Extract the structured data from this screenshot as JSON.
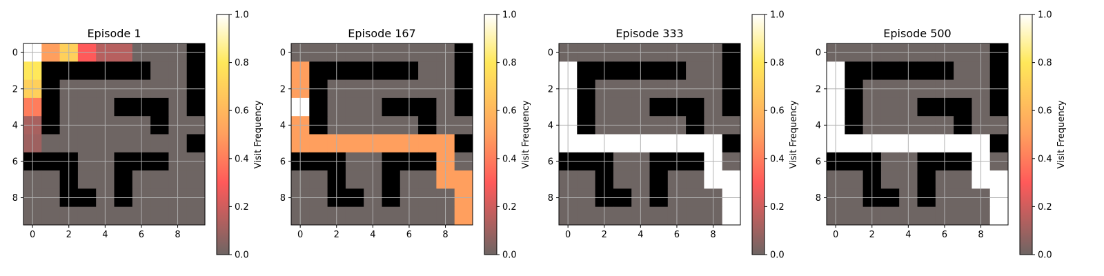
{
  "colors": {
    "wall": "#000000",
    "floor": "#6e6563",
    "grid": "#b0b0b0",
    "colormap": [
      "#6e6563",
      "#ff5a5a",
      "#ff9f5e",
      "#ffe85a",
      "#ffffff"
    ]
  },
  "chart_data": [
    {
      "type": "heatmap",
      "title": "Episode 1",
      "xticks": [
        "0",
        "2",
        "4",
        "6",
        "8"
      ],
      "yticks": [
        "0",
        "2",
        "4",
        "6",
        "8"
      ],
      "walls": [
        [
          0,
          9
        ],
        [
          1,
          1
        ],
        [
          1,
          2
        ],
        [
          1,
          3
        ],
        [
          1,
          4
        ],
        [
          1,
          5
        ],
        [
          1,
          6
        ],
        [
          1,
          9
        ],
        [
          2,
          1
        ],
        [
          2,
          9
        ],
        [
          3,
          1
        ],
        [
          3,
          5
        ],
        [
          3,
          6
        ],
        [
          3,
          7
        ],
        [
          3,
          9
        ],
        [
          4,
          1
        ],
        [
          4,
          7
        ],
        [
          5,
          9
        ],
        [
          6,
          0
        ],
        [
          6,
          1
        ],
        [
          6,
          2
        ],
        [
          6,
          5
        ],
        [
          6,
          6
        ],
        [
          6,
          7
        ],
        [
          7,
          2
        ],
        [
          7,
          5
        ],
        [
          8,
          2
        ],
        [
          8,
          3
        ],
        [
          8,
          5
        ]
      ],
      "visits": [
        [
          0,
          0,
          1.0
        ],
        [
          0,
          1,
          0.5
        ],
        [
          0,
          2,
          0.7
        ],
        [
          0,
          3,
          0.3
        ],
        [
          0,
          4,
          0.15
        ],
        [
          0,
          5,
          0.15
        ],
        [
          1,
          0,
          0.8
        ],
        [
          2,
          0,
          0.7
        ],
        [
          3,
          0,
          0.4
        ],
        [
          4,
          0,
          0.12
        ],
        [
          5,
          0,
          0.1
        ]
      ],
      "grid": true,
      "colorbar": {
        "label": "Visit Frequency",
        "ticks": [
          "0.0",
          "0.2",
          "0.4",
          "0.6",
          "0.8",
          "1.0"
        ],
        "range": [
          0,
          1
        ]
      }
    },
    {
      "type": "heatmap",
      "title": "Episode 167",
      "xticks": [
        "0",
        "2",
        "4",
        "6",
        "8"
      ],
      "yticks": [
        "0",
        "2",
        "4",
        "6",
        "8"
      ],
      "walls": [
        [
          0,
          9
        ],
        [
          1,
          1
        ],
        [
          1,
          2
        ],
        [
          1,
          3
        ],
        [
          1,
          4
        ],
        [
          1,
          5
        ],
        [
          1,
          6
        ],
        [
          1,
          9
        ],
        [
          2,
          1
        ],
        [
          2,
          9
        ],
        [
          3,
          1
        ],
        [
          3,
          5
        ],
        [
          3,
          6
        ],
        [
          3,
          7
        ],
        [
          3,
          9
        ],
        [
          4,
          1
        ],
        [
          4,
          7
        ],
        [
          5,
          9
        ],
        [
          6,
          0
        ],
        [
          6,
          1
        ],
        [
          6,
          2
        ],
        [
          6,
          5
        ],
        [
          6,
          6
        ],
        [
          6,
          7
        ],
        [
          7,
          2
        ],
        [
          7,
          5
        ],
        [
          8,
          2
        ],
        [
          8,
          3
        ],
        [
          8,
          5
        ]
      ],
      "visits": [
        [
          1,
          0,
          0.5
        ],
        [
          2,
          0,
          0.5
        ],
        [
          3,
          0,
          1.0
        ],
        [
          4,
          0,
          0.5
        ],
        [
          5,
          0,
          0.5
        ],
        [
          5,
          1,
          0.5
        ],
        [
          5,
          2,
          0.5
        ],
        [
          5,
          3,
          0.5
        ],
        [
          5,
          4,
          0.5
        ],
        [
          5,
          5,
          0.5
        ],
        [
          5,
          6,
          0.5
        ],
        [
          5,
          7,
          0.5
        ],
        [
          5,
          8,
          0.5
        ],
        [
          6,
          8,
          0.5
        ],
        [
          7,
          8,
          0.5
        ],
        [
          7,
          9,
          0.5
        ],
        [
          8,
          9,
          0.5
        ],
        [
          9,
          9,
          0.5
        ]
      ],
      "grid": true,
      "colorbar": {
        "label": "Visit Frequency",
        "ticks": [
          "0.0",
          "0.2",
          "0.4",
          "0.6",
          "0.8",
          "1.0"
        ],
        "range": [
          0,
          1
        ]
      }
    },
    {
      "type": "heatmap",
      "title": "Episode 333",
      "xticks": [
        "0",
        "2",
        "4",
        "6",
        "8"
      ],
      "yticks": [
        "0",
        "2",
        "4",
        "6",
        "8"
      ],
      "walls": [
        [
          0,
          9
        ],
        [
          1,
          1
        ],
        [
          1,
          2
        ],
        [
          1,
          3
        ],
        [
          1,
          4
        ],
        [
          1,
          5
        ],
        [
          1,
          6
        ],
        [
          1,
          9
        ],
        [
          2,
          1
        ],
        [
          2,
          9
        ],
        [
          3,
          1
        ],
        [
          3,
          5
        ],
        [
          3,
          6
        ],
        [
          3,
          7
        ],
        [
          3,
          9
        ],
        [
          4,
          1
        ],
        [
          4,
          7
        ],
        [
          5,
          9
        ],
        [
          6,
          0
        ],
        [
          6,
          1
        ],
        [
          6,
          2
        ],
        [
          6,
          5
        ],
        [
          6,
          6
        ],
        [
          6,
          7
        ],
        [
          7,
          2
        ],
        [
          7,
          5
        ],
        [
          8,
          2
        ],
        [
          8,
          3
        ],
        [
          8,
          5
        ]
      ],
      "visits": [
        [
          1,
          0,
          1.0
        ],
        [
          2,
          0,
          1.0
        ],
        [
          3,
          0,
          1.0
        ],
        [
          4,
          0,
          1.0
        ],
        [
          5,
          0,
          1.0
        ],
        [
          5,
          1,
          1.0
        ],
        [
          5,
          2,
          1.0
        ],
        [
          5,
          3,
          1.0
        ],
        [
          5,
          4,
          1.0
        ],
        [
          5,
          5,
          1.0
        ],
        [
          5,
          6,
          1.0
        ],
        [
          5,
          7,
          1.0
        ],
        [
          5,
          8,
          1.0
        ],
        [
          6,
          8,
          1.0
        ],
        [
          7,
          8,
          1.0
        ],
        [
          7,
          9,
          1.0
        ],
        [
          8,
          9,
          1.0
        ],
        [
          9,
          9,
          1.0
        ]
      ],
      "grid": true,
      "colorbar": {
        "label": "Visit Frequency",
        "ticks": [
          "0.0",
          "0.2",
          "0.4",
          "0.6",
          "0.8",
          "1.0"
        ],
        "range": [
          0,
          1
        ]
      }
    },
    {
      "type": "heatmap",
      "title": "Episode 500",
      "xticks": [
        "0",
        "2",
        "4",
        "6",
        "8"
      ],
      "yticks": [
        "0",
        "2",
        "4",
        "6",
        "8"
      ],
      "walls": [
        [
          0,
          9
        ],
        [
          1,
          1
        ],
        [
          1,
          2
        ],
        [
          1,
          3
        ],
        [
          1,
          4
        ],
        [
          1,
          5
        ],
        [
          1,
          6
        ],
        [
          1,
          9
        ],
        [
          2,
          1
        ],
        [
          2,
          9
        ],
        [
          3,
          1
        ],
        [
          3,
          5
        ],
        [
          3,
          6
        ],
        [
          3,
          7
        ],
        [
          3,
          9
        ],
        [
          4,
          1
        ],
        [
          4,
          7
        ],
        [
          5,
          9
        ],
        [
          6,
          0
        ],
        [
          6,
          1
        ],
        [
          6,
          2
        ],
        [
          6,
          5
        ],
        [
          6,
          6
        ],
        [
          6,
          7
        ],
        [
          7,
          2
        ],
        [
          7,
          5
        ],
        [
          8,
          2
        ],
        [
          8,
          3
        ],
        [
          8,
          5
        ]
      ],
      "visits": [
        [
          1,
          0,
          1.0
        ],
        [
          2,
          0,
          1.0
        ],
        [
          3,
          0,
          1.0
        ],
        [
          4,
          0,
          1.0
        ],
        [
          5,
          0,
          1.0
        ],
        [
          5,
          1,
          1.0
        ],
        [
          5,
          2,
          1.0
        ],
        [
          5,
          3,
          1.0
        ],
        [
          5,
          4,
          1.0
        ],
        [
          5,
          5,
          1.0
        ],
        [
          5,
          6,
          1.0
        ],
        [
          5,
          7,
          1.0
        ],
        [
          5,
          8,
          1.0
        ],
        [
          6,
          8,
          1.0
        ],
        [
          7,
          8,
          1.0
        ],
        [
          7,
          9,
          1.0
        ],
        [
          8,
          9,
          1.0
        ],
        [
          9,
          9,
          1.0
        ]
      ],
      "grid": true,
      "colorbar": {
        "label": "Visit Frequency",
        "ticks": [
          "0.0",
          "0.2",
          "0.4",
          "0.6",
          "0.8",
          "1.0"
        ],
        "range": [
          0,
          1
        ]
      }
    }
  ]
}
